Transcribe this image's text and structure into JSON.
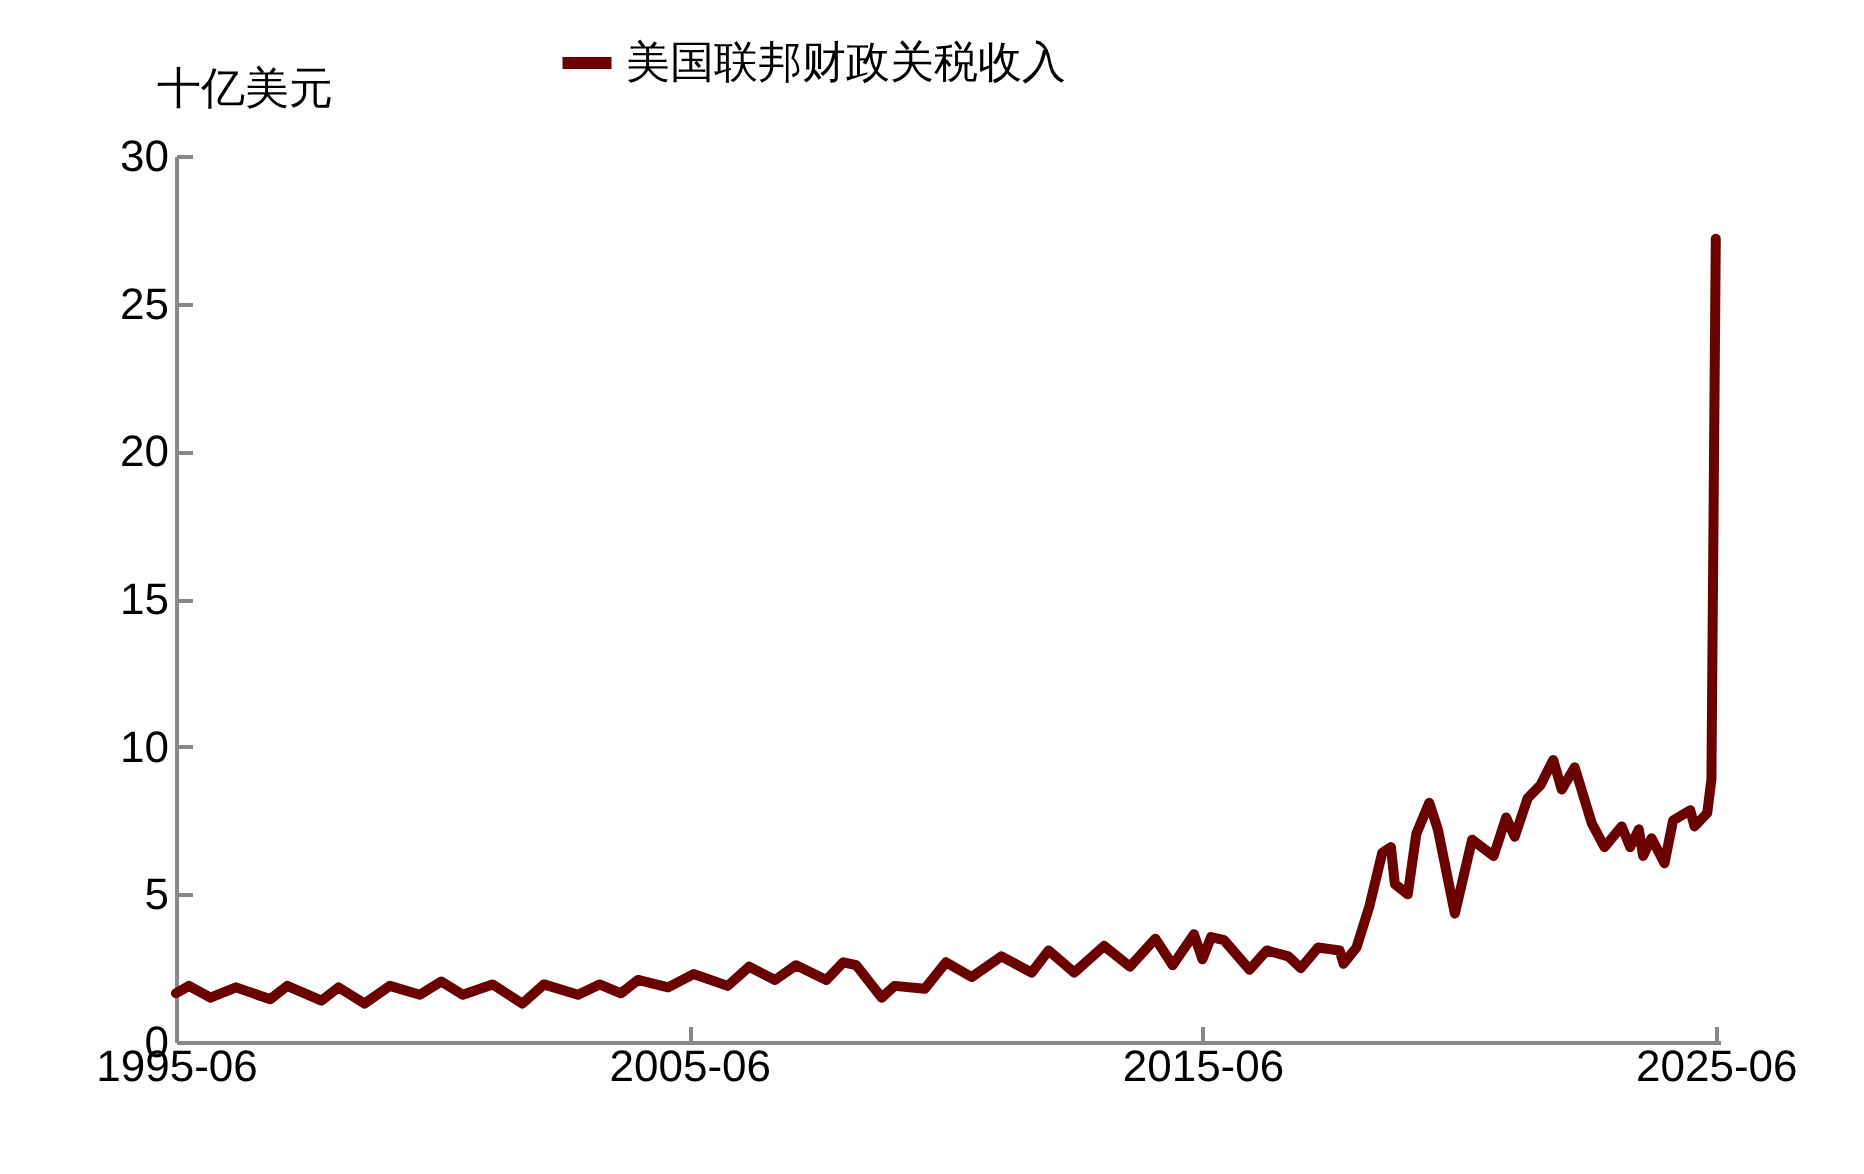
{
  "chart_data": {
    "type": "line",
    "ylabel": "十亿美元",
    "legend": "top",
    "grid": false,
    "line_style": "solid",
    "xlim": [
      "1995-06",
      "2025-07"
    ],
    "xticks": [
      "1995-06",
      "2005-06",
      "2015-06",
      "2025-06"
    ],
    "ylim": [
      0,
      30
    ],
    "yticks": [
      0,
      5,
      10,
      15,
      20,
      25,
      30
    ],
    "series": [
      {
        "name": "美国联邦财政关税收入",
        "color": "#6b0000",
        "x": [
          "1995-06",
          "1995-09",
          "1996-02",
          "1996-08",
          "1997-04",
          "1997-08",
          "1998-04",
          "1998-08",
          "1999-02",
          "1999-08",
          "2000-03",
          "2000-08",
          "2001-01",
          "2001-08",
          "2002-03",
          "2002-08",
          "2003-04",
          "2003-09",
          "2004-02",
          "2004-06",
          "2005-01",
          "2005-07",
          "2006-03",
          "2006-08",
          "2007-02",
          "2007-07",
          "2008-02",
          "2008-06",
          "2008-09",
          "2009-03",
          "2009-06",
          "2010-01",
          "2010-06",
          "2010-12",
          "2011-07",
          "2012-02",
          "2012-06",
          "2012-12",
          "2013-07",
          "2014-01",
          "2014-07",
          "2014-11",
          "2015-04",
          "2015-06",
          "2015-08",
          "2015-11",
          "2016-05",
          "2016-09",
          "2017-02",
          "2017-05",
          "2017-09",
          "2018-02",
          "2018-03",
          "2018-06",
          "2018-09",
          "2018-12",
          "2019-02",
          "2019-03",
          "2019-06",
          "2019-08",
          "2019-11",
          "2020-01",
          "2020-05",
          "2020-09",
          "2021-02",
          "2021-05",
          "2021-07",
          "2021-10",
          "2022-01",
          "2022-04",
          "2022-06",
          "2022-09",
          "2023-01",
          "2023-04",
          "2023-08",
          "2023-10",
          "2023-12",
          "2024-01",
          "2024-03",
          "2024-06",
          "2024-08",
          "2024-12",
          "2025-01",
          "2025-04",
          "2025-05",
          "2025-06"
        ],
        "values": [
          1.65,
          1.9,
          1.5,
          1.85,
          1.45,
          1.9,
          1.4,
          1.85,
          1.3,
          1.9,
          1.6,
          2.05,
          1.6,
          1.95,
          1.3,
          1.95,
          1.6,
          1.95,
          1.65,
          2.1,
          1.85,
          2.3,
          1.9,
          2.55,
          2.1,
          2.6,
          2.1,
          2.7,
          2.6,
          1.5,
          1.9,
          1.8,
          2.7,
          2.2,
          2.9,
          2.35,
          3.1,
          2.35,
          3.25,
          2.55,
          3.5,
          2.6,
          3.65,
          2.8,
          3.55,
          3.45,
          2.45,
          3.1,
          2.9,
          2.5,
          3.2,
          3.1,
          2.65,
          3.2,
          4.6,
          6.4,
          6.6,
          5.35,
          5.0,
          7.05,
          8.1,
          7.2,
          4.35,
          6.85,
          6.3,
          7.6,
          6.95,
          8.25,
          8.7,
          9.55,
          8.55,
          9.3,
          7.4,
          6.6,
          7.3,
          6.6,
          7.2,
          6.3,
          6.9,
          6.05,
          7.5,
          7.85,
          7.3,
          7.75,
          8.9,
          27.2
        ]
      }
    ]
  }
}
